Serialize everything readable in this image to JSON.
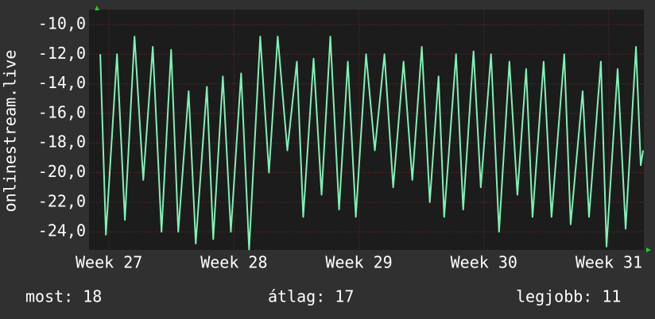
{
  "chart_data": {
    "type": "line",
    "y_label": "onlinestream.live",
    "annotations": [
      "most: 18",
      "átlag: 17",
      "legjobb: 11"
    ],
    "xlim": [
      26.84,
      31.28
    ],
    "xticks": [
      {
        "value": 27,
        "label": "Week 27"
      },
      {
        "value": 28,
        "label": "Week 28"
      },
      {
        "value": 29,
        "label": "Week 29"
      },
      {
        "value": 30,
        "label": "Week 30"
      },
      {
        "value": 31,
        "label": "Week 31"
      }
    ],
    "ylim": [
      -25.23,
      -8.98
    ],
    "yticks": [
      {
        "value": -10,
        "label": "-10,0"
      },
      {
        "value": -12,
        "label": "-12,0"
      },
      {
        "value": -14,
        "label": "-14,0"
      },
      {
        "value": -16,
        "label": "-16,0"
      },
      {
        "value": -18,
        "label": "-18,0"
      },
      {
        "value": -20,
        "label": "-20,0"
      },
      {
        "value": -22,
        "label": "-22,0"
      },
      {
        "value": -24,
        "label": "-24,0"
      }
    ],
    "grid": true,
    "series": [
      {
        "color": "#80f0b4",
        "x": [
          26.93,
          26.975,
          27.064,
          27.127,
          27.204,
          27.274,
          27.35,
          27.42,
          27.497,
          27.554,
          27.637,
          27.694,
          27.783,
          27.834,
          27.911,
          27.975,
          28.057,
          28.121,
          28.21,
          28.28,
          28.35,
          28.427,
          28.503,
          28.554,
          28.637,
          28.701,
          28.771,
          28.841,
          28.911,
          28.975,
          29.057,
          29.127,
          29.204,
          29.274,
          29.357,
          29.427,
          29.503,
          29.567,
          29.637,
          29.682,
          29.777,
          29.834,
          29.917,
          29.975,
          30.057,
          30.121,
          30.204,
          30.268,
          30.338,
          30.389,
          30.478,
          30.541,
          30.643,
          30.694,
          30.79,
          30.841,
          30.936,
          30.981,
          31.07,
          31.134,
          31.217,
          31.255,
          31.274
        ],
        "values": [
          -12.0,
          -24.2,
          -12.0,
          -23.2,
          -10.8,
          -20.5,
          -11.5,
          -24.0,
          -11.7,
          -24.0,
          -14.5,
          -24.8,
          -14.2,
          -24.5,
          -13.5,
          -24.0,
          -13.3,
          -25.2,
          -10.8,
          -20.0,
          -10.8,
          -18.5,
          -12.5,
          -23.0,
          -12.3,
          -21.5,
          -10.8,
          -22.5,
          -12.5,
          -23.0,
          -12.0,
          -18.5,
          -12.0,
          -21.0,
          -12.5,
          -20.5,
          -11.5,
          -22.0,
          -13.5,
          -23.0,
          -12.0,
          -22.5,
          -11.8,
          -21.0,
          -12.0,
          -24.0,
          -12.5,
          -21.5,
          -13.0,
          -23.0,
          -12.5,
          -23.0,
          -12.0,
          -23.5,
          -14.5,
          -23.0,
          -12.5,
          -25.0,
          -13.0,
          -23.8,
          -11.5,
          -19.5,
          -18.5
        ]
      }
    ]
  }
}
